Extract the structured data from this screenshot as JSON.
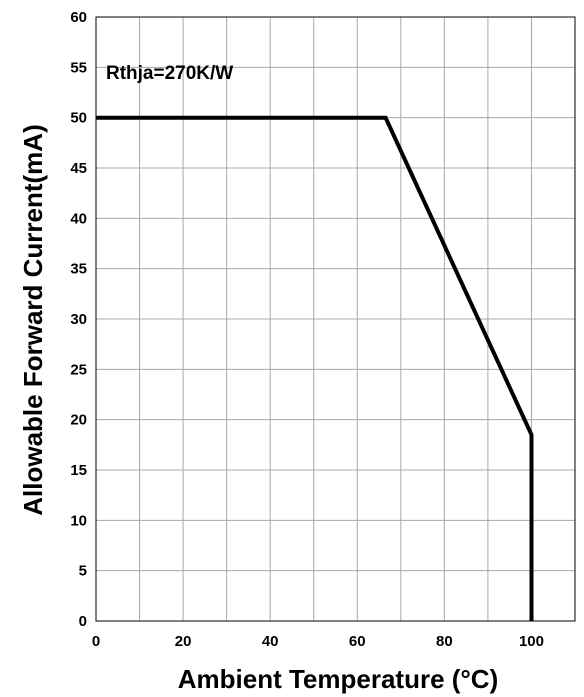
{
  "chart_data": {
    "type": "line",
    "xlabel": "Ambient Temperature (°C)",
    "ylabel": "Allowable Forward Current(mA)",
    "xlim": [
      0,
      110
    ],
    "ylim": [
      0,
      60
    ],
    "x_ticks": [
      0,
      20,
      40,
      60,
      80,
      100
    ],
    "x_grid_step": 10,
    "y_ticks": [
      0,
      5,
      10,
      15,
      20,
      25,
      30,
      35,
      40,
      45,
      50,
      55,
      60
    ],
    "grid": true,
    "annotation": "Rthja=270K/W",
    "series": [
      {
        "x": [
          0,
          66.5,
          100,
          100
        ],
        "y": [
          50,
          50,
          18.5,
          0
        ],
        "color": "#000000"
      }
    ]
  }
}
